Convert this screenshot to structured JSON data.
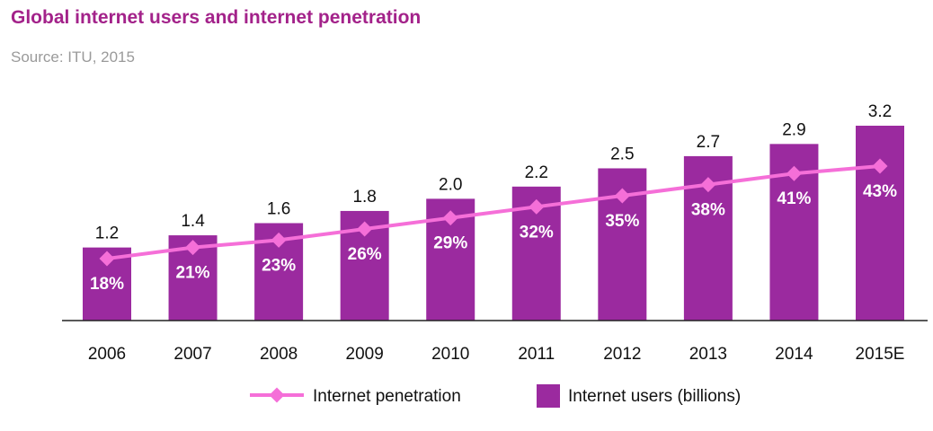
{
  "title": "Global internet users and internet penetration",
  "subtitle": "Source: ITU, 2015",
  "colors": {
    "title": "#a3228a",
    "bar": "#9b2a9f",
    "line": "#f56fd8",
    "subtitle": "#9a9a9a"
  },
  "chart_data": {
    "type": "bar",
    "title": "Global internet users and internet penetration",
    "subtitle": "Source: ITU, 2015",
    "categories": [
      "2006",
      "2007",
      "2008",
      "2009",
      "2010",
      "2011",
      "2012",
      "2013",
      "2014",
      "2015E"
    ],
    "series": [
      {
        "name": "Internet users (billions)",
        "type": "bar",
        "values": [
          1.2,
          1.4,
          1.6,
          1.8,
          2.0,
          2.2,
          2.5,
          2.7,
          2.9,
          3.2
        ],
        "labels": [
          "1.2",
          "1.4",
          "1.6",
          "1.8",
          "2.0",
          "2.2",
          "2.5",
          "2.7",
          "2.9",
          "3.2"
        ]
      },
      {
        "name": "Internet penetration",
        "type": "line",
        "values": [
          18,
          21,
          23,
          26,
          29,
          32,
          35,
          38,
          41,
          43
        ],
        "labels": [
          "18%",
          "21%",
          "23%",
          "26%",
          "29%",
          "32%",
          "35%",
          "38%",
          "41%",
          "43%"
        ]
      }
    ],
    "legend": {
      "position": "bottom",
      "entries": [
        "Internet penetration",
        "Internet users (billions)"
      ]
    },
    "grid": false
  }
}
